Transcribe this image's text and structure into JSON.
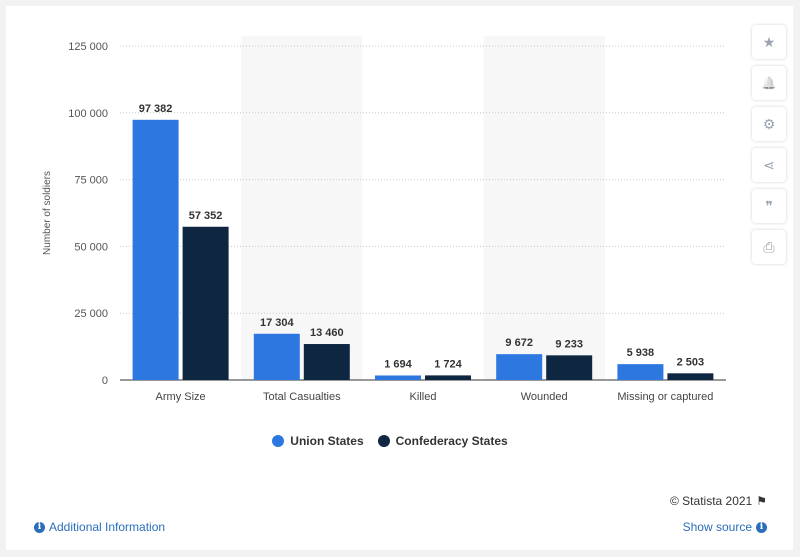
{
  "chart_data": {
    "type": "bar",
    "categories": [
      "Army Size",
      "Total Casualties",
      "Killed",
      "Wounded",
      "Missing or captured"
    ],
    "series": [
      {
        "name": "Union States",
        "values": [
          97382,
          17304,
          1694,
          9672,
          5938
        ],
        "color": "#2d78e0"
      },
      {
        "name": "Confederacy States",
        "values": [
          57352,
          13460,
          1724,
          9233,
          2503
        ],
        "color": "#0f2640"
      }
    ],
    "value_labels": [
      [
        "97 382",
        "17 304",
        "1 694",
        "9 672",
        "5 938"
      ],
      [
        "57 352",
        "13 460",
        "1 724",
        "9 233",
        "2 503"
      ]
    ],
    "ylabel": "Number of soldiers",
    "ylim": [
      0,
      125000
    ],
    "yticks": [
      0,
      25000,
      50000,
      75000,
      100000,
      125000
    ],
    "ytick_labels": [
      "0",
      "25 000",
      "50 000",
      "75 000",
      "100 000",
      "125 000"
    ],
    "grid": true,
    "legend_position": "bottom-center"
  },
  "toolbar": {
    "icons": [
      "star-icon",
      "bell-icon",
      "gear-icon",
      "share-icon",
      "quote-icon",
      "print-icon"
    ],
    "glyphs": [
      "★",
      "🔔",
      "⚙",
      "⋖",
      "❞",
      "⎙"
    ]
  },
  "footer": {
    "copyright": "© Statista 2021",
    "additional_info": "Additional Information",
    "show_source": "Show source"
  }
}
